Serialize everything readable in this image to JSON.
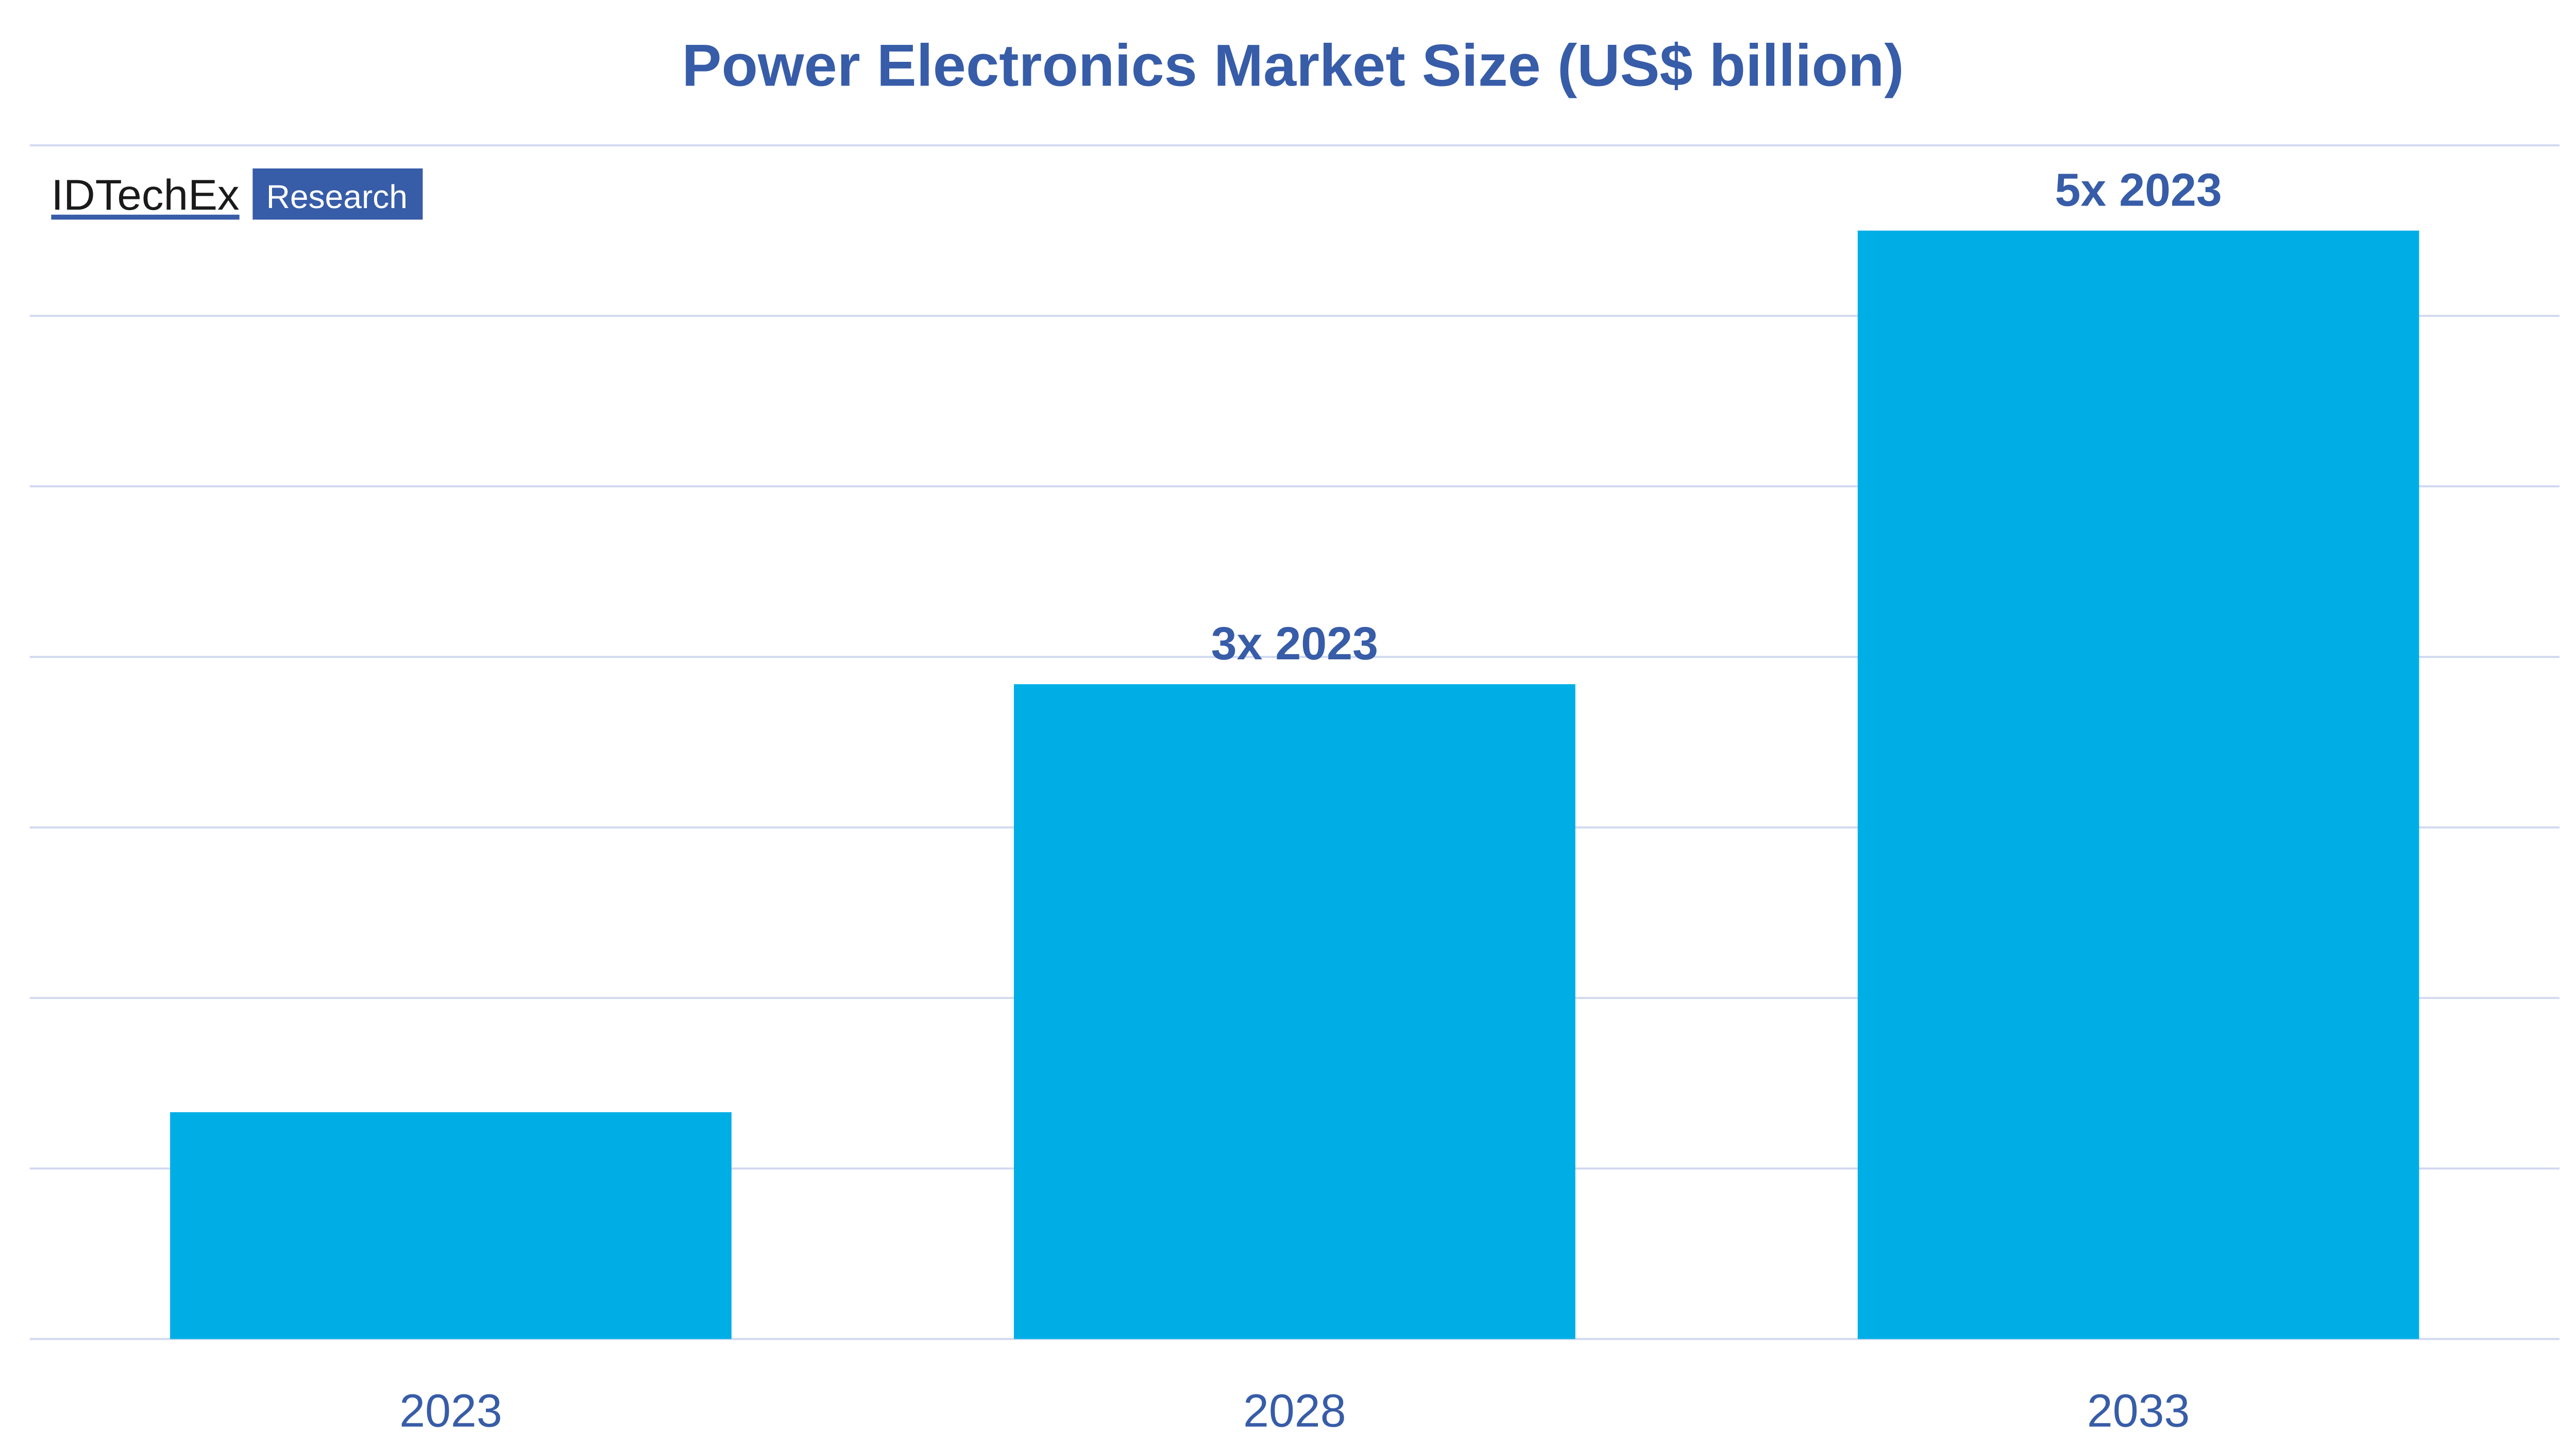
{
  "chart_data": {
    "type": "bar",
    "title": "Power Electronics Market Size (US$ billion)",
    "xlabel": "",
    "ylabel": "",
    "categories": [
      "2023",
      "2028",
      "2033"
    ],
    "values": [
      1.33,
      3.84,
      6.5
    ],
    "data_labels": [
      "",
      "3x 2023",
      "5x 2023"
    ],
    "ylim": [
      0,
      7
    ],
    "grid": true,
    "y_tick_labels_shown": false,
    "colors": {
      "bar": "#00AEE6",
      "text": "#375CA8",
      "grid": "#D0D8F0"
    }
  },
  "logo": {
    "brand": "IDTechEx",
    "tag": "Research"
  }
}
